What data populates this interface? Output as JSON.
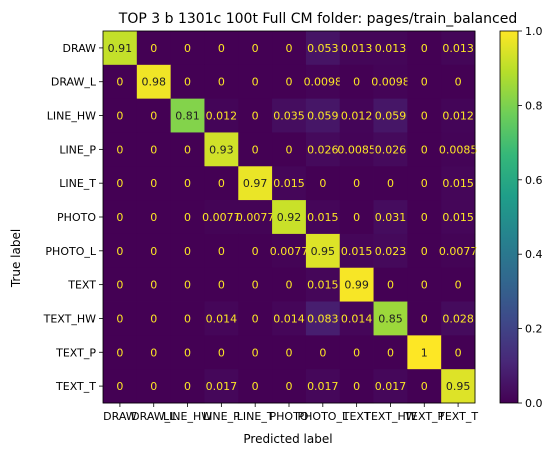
{
  "chart_data": {
    "type": "heatmap",
    "title": "TOP 3 b 1301c 100t  Full CM folder: pages/train_balanced",
    "xlabel": "Predicted label",
    "ylabel": "True label",
    "categories": [
      "DRAW",
      "DRAW_L",
      "LINE_HW",
      "LINE_P",
      "LINE_T",
      "PHOTO",
      "PHOTO_L",
      "TEXT",
      "TEXT_HW",
      "TEXT_P",
      "TEXT_T"
    ],
    "cells": [
      [
        "0.91",
        "0",
        "0",
        "0",
        "0",
        "0",
        "0.053",
        "0.013",
        "0.013",
        "0",
        "0.013"
      ],
      [
        "0",
        "0.98",
        "0",
        "0",
        "0",
        "0",
        "0.0098",
        "0",
        "0.0098",
        "0",
        "0"
      ],
      [
        "0",
        "0",
        "0.81",
        "0.012",
        "0",
        "0.035",
        "0.059",
        "0.012",
        "0.059",
        "0",
        "0.012"
      ],
      [
        "0",
        "0",
        "0",
        "0.93",
        "0",
        "0",
        "0.026",
        "0.0085",
        "0.026",
        "0",
        "0.0085"
      ],
      [
        "0",
        "0",
        "0",
        "0",
        "0.97",
        "0.015",
        "0",
        "0",
        "0",
        "0",
        "0.015"
      ],
      [
        "0",
        "0",
        "0",
        "0.0077",
        "0.0077",
        "0.92",
        "0.015",
        "0",
        "0.031",
        "0",
        "0.015"
      ],
      [
        "0",
        "0",
        "0",
        "0",
        "0",
        "0.0077",
        "0.95",
        "0.015",
        "0.023",
        "0",
        "0.0077"
      ],
      [
        "0",
        "0",
        "0",
        "0",
        "0",
        "0",
        "0.015",
        "0.99",
        "0",
        "0",
        "0"
      ],
      [
        "0",
        "0",
        "0",
        "0.014",
        "0",
        "0.014",
        "0.083",
        "0.014",
        "0.85",
        "0",
        "0.028"
      ],
      [
        "0",
        "0",
        "0",
        "0",
        "0",
        "0",
        "0",
        "0",
        "0",
        "1",
        "0"
      ],
      [
        "0",
        "0",
        "0",
        "0.017",
        "0",
        "0",
        "0.017",
        "0",
        "0.017",
        "0",
        "0.95"
      ]
    ],
    "colorbar": {
      "range": [
        0,
        1
      ],
      "ticks": [
        "0.0",
        "0.2",
        "0.4",
        "0.6",
        "0.8",
        "1.0"
      ]
    },
    "colormap": [
      "#440154",
      "#482878",
      "#3e4989",
      "#31688e",
      "#26828e",
      "#1f9e89",
      "#35b779",
      "#6ece58",
      "#b5de2b",
      "#fde725"
    ]
  }
}
